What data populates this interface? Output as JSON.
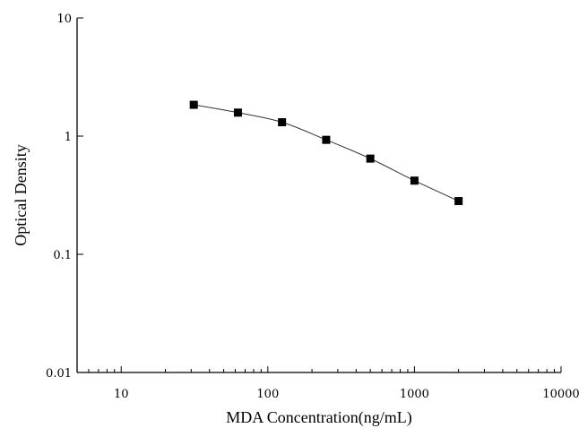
{
  "chart_data": {
    "type": "scatter",
    "title": "",
    "xlabel": "MDA Concentration(ng/mL)",
    "ylabel": "Optical Density",
    "x_scale": "log",
    "y_scale": "log",
    "xlim": [
      5,
      10000
    ],
    "ylim": [
      0.01,
      10
    ],
    "x_ticks": [
      "10",
      "100",
      "1000",
      "10000"
    ],
    "y_ticks": [
      "0.01",
      "0.1",
      "1",
      "10"
    ],
    "grid": false,
    "fit_line": true,
    "colors": {
      "marker": "#000000",
      "line": "#333333",
      "axis": "#000000"
    },
    "series": [
      {
        "x": [
          31.25,
          62.5,
          125,
          250,
          500,
          1000,
          2000
        ],
        "y": [
          1.84,
          1.58,
          1.31,
          0.93,
          0.645,
          0.42,
          0.282
        ]
      }
    ]
  }
}
